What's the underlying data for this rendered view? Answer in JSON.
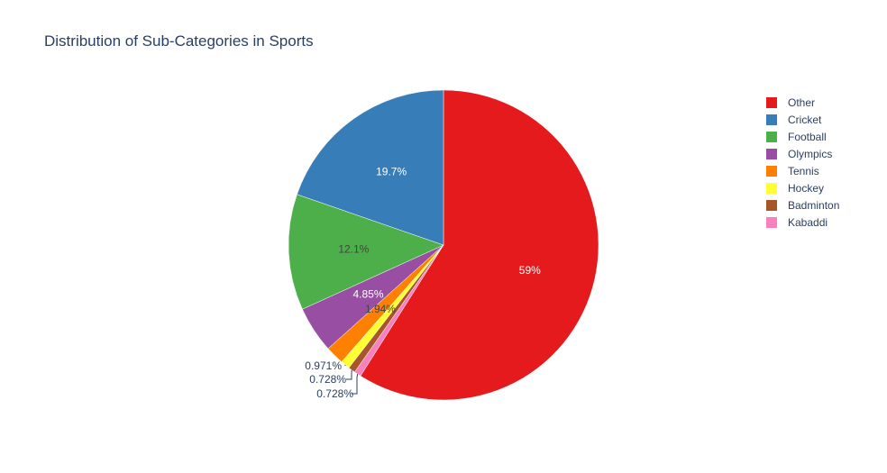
{
  "chart_data": {
    "type": "pie",
    "title": "Distribution of Sub-Categories in Sports",
    "legend_position": "top-right",
    "slices": [
      {
        "name": "Other",
        "value": 59.0,
        "label": "59%",
        "color": "#e41a1c",
        "label_color": "#ffffff"
      },
      {
        "name": "Kabaddi",
        "value": 0.728,
        "label": "0.728%",
        "color": "#f781bf",
        "label_color": "#2a3f5f"
      },
      {
        "name": "Badminton",
        "value": 0.728,
        "label": "0.728%",
        "color": "#a65628",
        "label_color": "#2a3f5f"
      },
      {
        "name": "Hockey",
        "value": 0.971,
        "label": "0.971%",
        "color": "#ffff33",
        "label_color": "#2a3f5f"
      },
      {
        "name": "Tennis",
        "value": 1.94,
        "label": "1.94%",
        "color": "#ff7f00",
        "label_color": "#444444"
      },
      {
        "name": "Olympics",
        "value": 4.85,
        "label": "4.85%",
        "color": "#984ea3",
        "label_color": "#ffffff"
      },
      {
        "name": "Football",
        "value": 12.1,
        "label": "12.1%",
        "color": "#4daf4a",
        "label_color": "#444444"
      },
      {
        "name": "Cricket",
        "value": 19.7,
        "label": "19.7%",
        "color": "#377eb8",
        "label_color": "#ffffff"
      }
    ],
    "legend": [
      "Other",
      "Cricket",
      "Football",
      "Olympics",
      "Tennis",
      "Hockey",
      "Badminton",
      "Kabaddi"
    ]
  }
}
